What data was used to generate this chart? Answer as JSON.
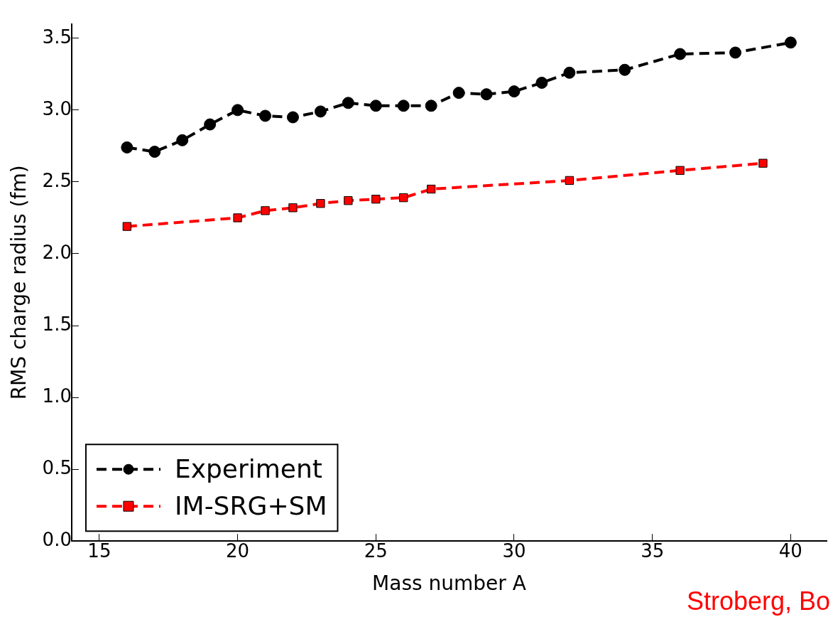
{
  "chart_data": {
    "type": "line",
    "xlabel": "Mass number A",
    "ylabel": "RMS charge radius (fm)",
    "xlim": [
      14,
      41.3
    ],
    "xticks": [
      15,
      20,
      25,
      30,
      35,
      40
    ],
    "ylim": [
      0,
      3.6
    ],
    "yticks": [
      {
        "value": 0,
        "label": "0.0"
      },
      {
        "value": 0.5,
        "label": "0.5"
      },
      {
        "value": 1,
        "label": "1.0"
      },
      {
        "value": 1.5,
        "label": "1.5"
      },
      {
        "value": 2,
        "label": "2.0"
      },
      {
        "value": 2.5,
        "label": "2.5"
      },
      {
        "value": 3,
        "label": "3.0"
      },
      {
        "value": 3.5,
        "label": "3.5"
      }
    ],
    "grid": false,
    "legend": "bottom left",
    "line_style": "dashed",
    "annotations": [
      "Stroberg, Bo"
    ],
    "series": [
      {
        "name": "Experiment",
        "color": "#000000",
        "marker": "circle",
        "x": [
          16,
          17,
          18,
          19,
          20,
          21,
          22,
          23,
          24,
          25,
          26,
          27,
          28,
          29,
          30,
          31,
          32,
          34,
          36,
          38,
          40
        ],
        "values": [
          2.74,
          2.71,
          2.79,
          2.9,
          3.0,
          2.96,
          2.95,
          2.99,
          3.05,
          3.03,
          3.03,
          3.03,
          3.12,
          3.11,
          3.13,
          3.19,
          3.26,
          3.28,
          3.39,
          3.4,
          3.47
        ]
      },
      {
        "name": "IM-SRG+SM",
        "color": "#ff0000",
        "marker": "square",
        "x": [
          16,
          20,
          21,
          22,
          23,
          24,
          25,
          26,
          27,
          32,
          36,
          39
        ],
        "values": [
          2.19,
          2.25,
          2.3,
          2.32,
          2.35,
          2.37,
          2.38,
          2.39,
          2.45,
          2.51,
          2.58,
          2.63
        ]
      }
    ]
  }
}
